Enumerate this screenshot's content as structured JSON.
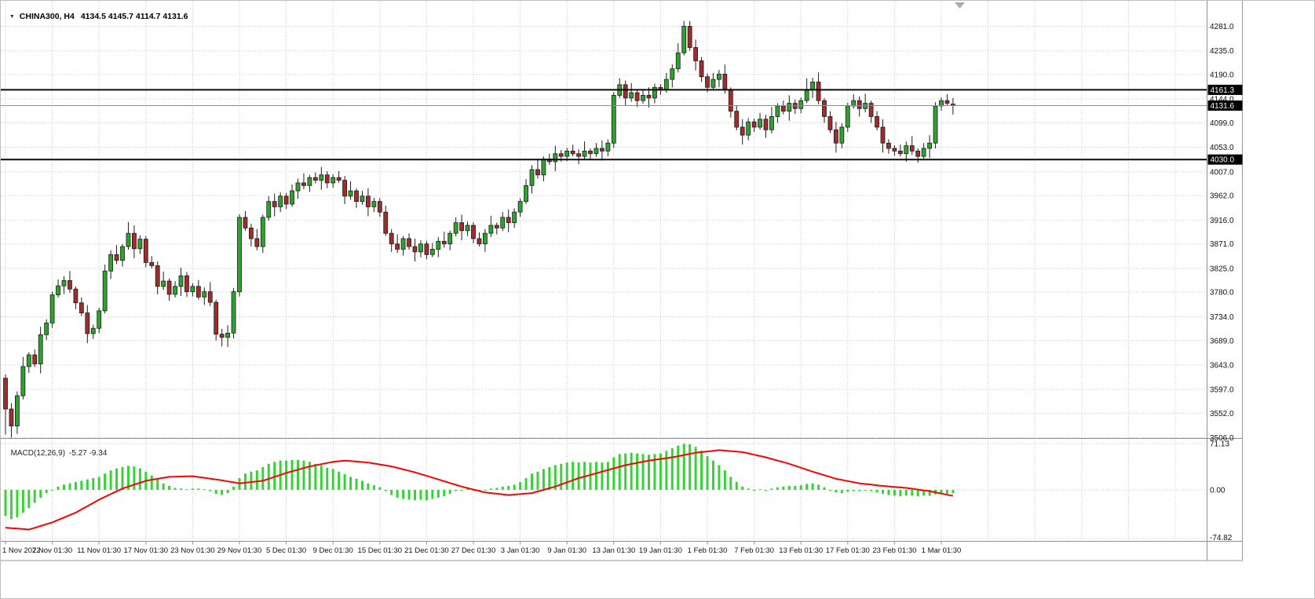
{
  "window": {
    "dropdown_icon": "▼",
    "symbol_period": "CHINA300, H4",
    "ohlc_text": "4134.5 4145.7 4114.7 4131.6"
  },
  "indicator": {
    "name": "MACD(12,26,9)",
    "values_text": "-5.27 -9.34"
  },
  "levels": {
    "resistance": {
      "price": 4161.3,
      "label": "4161.3"
    },
    "current": {
      "price": 4131.6,
      "label": "4131.6"
    },
    "support": {
      "price": 4030.0,
      "label": "4030.0"
    }
  },
  "colors": {
    "bull": "#2da32d",
    "bear": "#a02c2c",
    "candle_border": "#1c1c1c",
    "wick": "#1c1c1c",
    "hist": "#35d435",
    "signal": "#ff0000",
    "level_line": "#0a0a0a",
    "current_line": "#8c8c8c",
    "grid": "#c8c8c8",
    "badge_bg": "#000000",
    "badge_text": "#ffffff",
    "axis_text": "#111111",
    "separator": "#8f8f8f"
  },
  "chart_data": {
    "type": "candlestick",
    "symbol": "CHINA300",
    "timeframe": "H4",
    "price_ticks": [
      4281.0,
      4235.0,
      4190.0,
      4144.0,
      4099.0,
      4053.0,
      4007.0,
      3962.0,
      3916.0,
      3871.0,
      3825.0,
      3780.0,
      3734.0,
      3689.0,
      3643.0,
      3597.0,
      3552.0,
      3506.0
    ],
    "time_labels": [
      "1 Nov 2022",
      "7 Nov 01:30",
      "11 Nov 01:30",
      "17 Nov 01:30",
      "23 Nov 01:30",
      "29 Nov 01:30",
      "5 Dec 01:30",
      "9 Dec 01:30",
      "15 Dec 01:30",
      "21 Dec 01:30",
      "27 Dec 01:30",
      "3 Jan 01:30",
      "9 Jan 01:30",
      "13 Jan 01:30",
      "19 Jan 01:30",
      "1 Feb 01:30",
      "7 Feb 01:30",
      "13 Feb 01:30",
      "17 Feb 01:30",
      "23 Feb 01:30",
      "1 Mar 01:30"
    ],
    "bars_per_label": 8,
    "candles": [
      [
        3618,
        3625,
        3512,
        3560
      ],
      [
        3560,
        3571,
        3506,
        3528
      ],
      [
        3528,
        3593,
        3513,
        3585
      ],
      [
        3585,
        3658,
        3578,
        3640
      ],
      [
        3640,
        3667,
        3628,
        3662
      ],
      [
        3662,
        3672,
        3639,
        3645
      ],
      [
        3645,
        3715,
        3627,
        3700
      ],
      [
        3700,
        3729,
        3690,
        3722
      ],
      [
        3722,
        3781,
        3713,
        3775
      ],
      [
        3775,
        3804,
        3770,
        3792
      ],
      [
        3792,
        3810,
        3777,
        3802
      ],
      [
        3802,
        3820,
        3779,
        3786
      ],
      [
        3786,
        3791,
        3748,
        3760
      ],
      [
        3760,
        3770,
        3735,
        3741
      ],
      [
        3741,
        3756,
        3684,
        3702
      ],
      [
        3702,
        3719,
        3692,
        3712
      ],
      [
        3712,
        3751,
        3703,
        3745
      ],
      [
        3745,
        3832,
        3740,
        3820
      ],
      [
        3820,
        3859,
        3805,
        3851
      ],
      [
        3851,
        3869,
        3833,
        3840
      ],
      [
        3840,
        3871,
        3828,
        3866
      ],
      [
        3866,
        3912,
        3860,
        3891
      ],
      [
        3891,
        3906,
        3844,
        3862
      ],
      [
        3862,
        3887,
        3852,
        3880
      ],
      [
        3880,
        3886,
        3827,
        3836
      ],
      [
        3836,
        3848,
        3825,
        3830
      ],
      [
        3830,
        3838,
        3776,
        3791
      ],
      [
        3791,
        3819,
        3784,
        3801
      ],
      [
        3801,
        3806,
        3764,
        3776
      ],
      [
        3776,
        3801,
        3770,
        3791
      ],
      [
        3791,
        3826,
        3773,
        3811
      ],
      [
        3811,
        3818,
        3771,
        3781
      ],
      [
        3781,
        3797,
        3772,
        3791
      ],
      [
        3791,
        3803,
        3766,
        3771
      ],
      [
        3771,
        3789,
        3756,
        3781
      ],
      [
        3781,
        3799,
        3754,
        3761
      ],
      [
        3761,
        3766,
        3689,
        3701
      ],
      [
        3701,
        3711,
        3678,
        3695
      ],
      [
        3695,
        3718,
        3677,
        3703
      ],
      [
        3703,
        3788,
        3693,
        3781
      ],
      [
        3781,
        3927,
        3772,
        3921
      ],
      [
        3921,
        3933,
        3896,
        3901
      ],
      [
        3901,
        3909,
        3866,
        3881
      ],
      [
        3881,
        3899,
        3859,
        3866
      ],
      [
        3866,
        3926,
        3854,
        3921
      ],
      [
        3921,
        3961,
        3915,
        3951
      ],
      [
        3951,
        3966,
        3923,
        3941
      ],
      [
        3941,
        3968,
        3931,
        3961
      ],
      [
        3961,
        3967,
        3937,
        3946
      ],
      [
        3946,
        3983,
        3941,
        3971
      ],
      [
        3971,
        3994,
        3956,
        3986
      ],
      [
        3986,
        4004,
        3974,
        3981
      ],
      [
        3981,
        4001,
        3969,
        3996
      ],
      [
        3996,
        4006,
        3985,
        3991
      ],
      [
        3991,
        4016,
        3973,
        4001
      ],
      [
        4001,
        4008,
        3976,
        3986
      ],
      [
        3986,
        4002,
        3977,
        3996
      ],
      [
        3996,
        4008,
        3986,
        3991
      ],
      [
        3991,
        3999,
        3946,
        3961
      ],
      [
        3961,
        3989,
        3954,
        3971
      ],
      [
        3971,
        3976,
        3939,
        3951
      ],
      [
        3951,
        3971,
        3945,
        3961
      ],
      [
        3961,
        3976,
        3923,
        3941
      ],
      [
        3941,
        3958,
        3931,
        3951
      ],
      [
        3951,
        3957,
        3922,
        3931
      ],
      [
        3931,
        3943,
        3886,
        3891
      ],
      [
        3891,
        3899,
        3856,
        3871
      ],
      [
        3871,
        3889,
        3854,
        3861
      ],
      [
        3861,
        3886,
        3849,
        3881
      ],
      [
        3881,
        3891,
        3860,
        3866
      ],
      [
        3866,
        3881,
        3838,
        3856
      ],
      [
        3856,
        3878,
        3846,
        3871
      ],
      [
        3871,
        3877,
        3842,
        3851
      ],
      [
        3851,
        3873,
        3846,
        3861
      ],
      [
        3861,
        3884,
        3846,
        3876
      ],
      [
        3876,
        3894,
        3864,
        3871
      ],
      [
        3871,
        3896,
        3859,
        3891
      ],
      [
        3891,
        3921,
        3885,
        3911
      ],
      [
        3911,
        3926,
        3878,
        3896
      ],
      [
        3896,
        3913,
        3886,
        3906
      ],
      [
        3906,
        3912,
        3872,
        3881
      ],
      [
        3881,
        3893,
        3866,
        3871
      ],
      [
        3871,
        3899,
        3856,
        3891
      ],
      [
        3891,
        3924,
        3884,
        3906
      ],
      [
        3906,
        3911,
        3889,
        3901
      ],
      [
        3901,
        3931,
        3895,
        3921
      ],
      [
        3921,
        3936,
        3893,
        3911
      ],
      [
        3911,
        3938,
        3901,
        3931
      ],
      [
        3931,
        3957,
        3922,
        3951
      ],
      [
        3951,
        3993,
        3946,
        3981
      ],
      [
        3981,
        4019,
        3966,
        4011
      ],
      [
        4011,
        4029,
        3994,
        4001
      ],
      [
        4001,
        4036,
        3989,
        4031
      ],
      [
        4031,
        4041,
        4020,
        4026
      ],
      [
        4026,
        4056,
        4008,
        4041
      ],
      [
        4041,
        4048,
        4026,
        4036
      ],
      [
        4036,
        4052,
        4027,
        4046
      ],
      [
        4046,
        4058,
        4036,
        4041
      ],
      [
        4041,
        4049,
        4021,
        4036
      ],
      [
        4036,
        4064,
        4029,
        4046
      ],
      [
        4046,
        4051,
        4029,
        4041
      ],
      [
        4041,
        4061,
        4035,
        4051
      ],
      [
        4051,
        4066,
        4028,
        4046
      ],
      [
        4046,
        4068,
        4036,
        4061
      ],
      [
        4061,
        4157,
        4052,
        4151
      ],
      [
        4151,
        4183,
        4146,
        4171
      ],
      [
        4171,
        4179,
        4131,
        4146
      ],
      [
        4146,
        4174,
        4139,
        4156
      ],
      [
        4156,
        4161,
        4129,
        4141
      ],
      [
        4141,
        4161,
        4135,
        4151
      ],
      [
        4151,
        4166,
        4128,
        4146
      ],
      [
        4146,
        4173,
        4136,
        4166
      ],
      [
        4166,
        4172,
        4152,
        4161
      ],
      [
        4161,
        4193,
        4156,
        4181
      ],
      [
        4181,
        4209,
        4166,
        4201
      ],
      [
        4201,
        4249,
        4194,
        4231
      ],
      [
        4231,
        4291,
        4226,
        4281
      ],
      [
        4281,
        4291,
        4235,
        4241
      ],
      [
        4241,
        4256,
        4198,
        4216
      ],
      [
        4216,
        4223,
        4176,
        4186
      ],
      [
        4186,
        4192,
        4157,
        4166
      ],
      [
        4166,
        4193,
        4161,
        4181
      ],
      [
        4181,
        4199,
        4166,
        4191
      ],
      [
        4191,
        4209,
        4154,
        4161
      ],
      [
        4161,
        4166,
        4109,
        4121
      ],
      [
        4121,
        4131,
        4085,
        4091
      ],
      [
        4091,
        4106,
        4058,
        4076
      ],
      [
        4076,
        4108,
        4066,
        4101
      ],
      [
        4101,
        4107,
        4082,
        4091
      ],
      [
        4091,
        4118,
        4086,
        4106
      ],
      [
        4106,
        4114,
        4071,
        4086
      ],
      [
        4086,
        4129,
        4079,
        4111
      ],
      [
        4111,
        4136,
        4099,
        4131
      ],
      [
        4131,
        4141,
        4115,
        4121
      ],
      [
        4121,
        4151,
        4103,
        4136
      ],
      [
        4136,
        4143,
        4116,
        4126
      ],
      [
        4126,
        4147,
        4117,
        4141
      ],
      [
        4141,
        4183,
        4136,
        4161
      ],
      [
        4161,
        4184,
        4146,
        4176
      ],
      [
        4176,
        4194,
        4134,
        4141
      ],
      [
        4141,
        4146,
        4099,
        4111
      ],
      [
        4111,
        4121,
        4080,
        4086
      ],
      [
        4086,
        4101,
        4043,
        4061
      ],
      [
        4061,
        4098,
        4051,
        4091
      ],
      [
        4091,
        4137,
        4082,
        4131
      ],
      [
        4131,
        4153,
        4126,
        4141
      ],
      [
        4141,
        4149,
        4111,
        4126
      ],
      [
        4126,
        4154,
        4119,
        4136
      ],
      [
        4136,
        4141,
        4099,
        4111
      ],
      [
        4111,
        4121,
        4085,
        4091
      ],
      [
        4091,
        4106,
        4043,
        4061
      ],
      [
        4061,
        4068,
        4041,
        4051
      ],
      [
        4051,
        4057,
        4037,
        4046
      ],
      [
        4046,
        4058,
        4036,
        4041
      ],
      [
        4041,
        4064,
        4026,
        4056
      ],
      [
        4056,
        4074,
        4039,
        4046
      ],
      [
        4046,
        4051,
        4024,
        4036
      ],
      [
        4036,
        4061,
        4030,
        4051
      ],
      [
        4051,
        4076,
        4033,
        4061
      ],
      [
        4061,
        4138,
        4051,
        4131
      ],
      [
        4131,
        4147,
        4122,
        4141
      ],
      [
        4141,
        4153,
        4131,
        4136
      ],
      [
        4134.5,
        4145.7,
        4114.7,
        4131.6
      ]
    ],
    "macd": {
      "type": "histogram+line",
      "ticks": [
        71.13,
        0,
        -74.82
      ],
      "hist": [
        -40,
        -45,
        -42,
        -35,
        -28,
        -20,
        -12,
        -5,
        0,
        5,
        8,
        10,
        12,
        14,
        16,
        18,
        20,
        25,
        30,
        33,
        35,
        37,
        36,
        33,
        28,
        22,
        16,
        10,
        6,
        3,
        2,
        1,
        2,
        2,
        1,
        -2,
        -6,
        -8,
        -5,
        5,
        18,
        25,
        28,
        30,
        35,
        40,
        43,
        45,
        45,
        46,
        46,
        45,
        43,
        40,
        38,
        34,
        32,
        28,
        24,
        20,
        17,
        14,
        10,
        7,
        4,
        -2,
        -8,
        -12,
        -14,
        -15,
        -16,
        -15,
        -16,
        -14,
        -12,
        -10,
        -6,
        -2,
        0,
        2,
        0,
        -2,
        -1,
        2,
        3,
        5,
        6,
        8,
        12,
        18,
        25,
        28,
        32,
        35,
        38,
        40,
        42,
        43,
        42,
        43,
        42,
        43,
        42,
        43,
        50,
        55,
        56,
        57,
        56,
        55,
        54,
        55,
        56,
        60,
        64,
        68,
        71,
        70,
        66,
        60,
        52,
        45,
        38,
        30,
        20,
        12,
        5,
        2,
        0,
        1,
        0,
        2,
        4,
        5,
        6,
        6,
        7,
        9,
        10,
        8,
        4,
        0,
        -4,
        -5,
        -3,
        -2,
        -2,
        -1,
        -2,
        -4,
        -6,
        -8,
        -9,
        -10,
        -9,
        -9,
        -10,
        -9,
        -9,
        -7,
        -6,
        -6,
        -5.27
      ],
      "signal_points": [
        [
          0,
          -58
        ],
        [
          4,
          -61
        ],
        [
          8,
          -50
        ],
        [
          12,
          -35
        ],
        [
          16,
          -15
        ],
        [
          20,
          2
        ],
        [
          24,
          14
        ],
        [
          28,
          20
        ],
        [
          32,
          21
        ],
        [
          36,
          16
        ],
        [
          40,
          10
        ],
        [
          44,
          14
        ],
        [
          48,
          26
        ],
        [
          52,
          36
        ],
        [
          56,
          43
        ],
        [
          58,
          45
        ],
        [
          62,
          42
        ],
        [
          66,
          36
        ],
        [
          70,
          27
        ],
        [
          74,
          16
        ],
        [
          78,
          5
        ],
        [
          82,
          -4
        ],
        [
          86,
          -8
        ],
        [
          90,
          -5
        ],
        [
          94,
          5
        ],
        [
          98,
          18
        ],
        [
          102,
          28
        ],
        [
          106,
          38
        ],
        [
          110,
          45
        ],
        [
          114,
          50
        ],
        [
          118,
          57
        ],
        [
          122,
          61
        ],
        [
          126,
          58
        ],
        [
          130,
          50
        ],
        [
          134,
          40
        ],
        [
          138,
          28
        ],
        [
          142,
          17
        ],
        [
          146,
          10
        ],
        [
          150,
          6
        ],
        [
          154,
          3
        ],
        [
          158,
          -2
        ],
        [
          162,
          -9.34
        ]
      ]
    }
  }
}
